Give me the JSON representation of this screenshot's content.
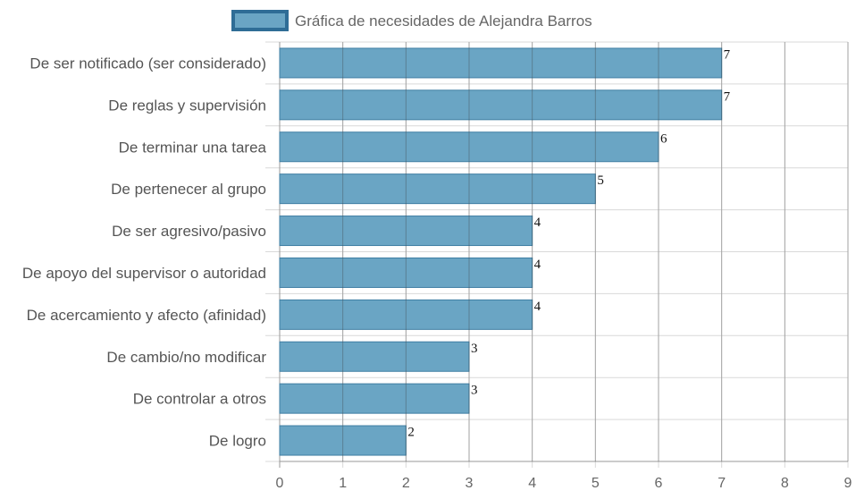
{
  "chart_data": {
    "type": "bar",
    "orientation": "horizontal",
    "legend": {
      "label": "Gráfica de necesidades de Alejandra Barros",
      "placement": "top-center"
    },
    "categories": [
      "De ser notificado (ser considerado)",
      "De reglas y supervisión",
      "De terminar una tarea",
      "De pertenecer al grupo",
      "De ser agresivo/pasivo",
      "De apoyo del supervisor o autoridad",
      "De acercamiento y afecto (afinidad)",
      "De cambio/no modificar",
      "De controlar a otros",
      "De logro"
    ],
    "series": [
      {
        "name": "Gráfica de necesidades de Alejandra Barros",
        "values": [
          7,
          7,
          6,
          5,
          4,
          4,
          4,
          3,
          3,
          2
        ]
      }
    ],
    "xlim": [
      0,
      9
    ],
    "xticks": [
      "0",
      "1",
      "2",
      "3",
      "4",
      "5",
      "6",
      "7",
      "8",
      "9"
    ],
    "grid": true,
    "colors": {
      "bar_fill": "#6aa5c4",
      "bar_border": "#3f7ea3",
      "legend_border": "#2f6d96",
      "grid": "#d9d9d9",
      "axis": "#999999"
    }
  }
}
